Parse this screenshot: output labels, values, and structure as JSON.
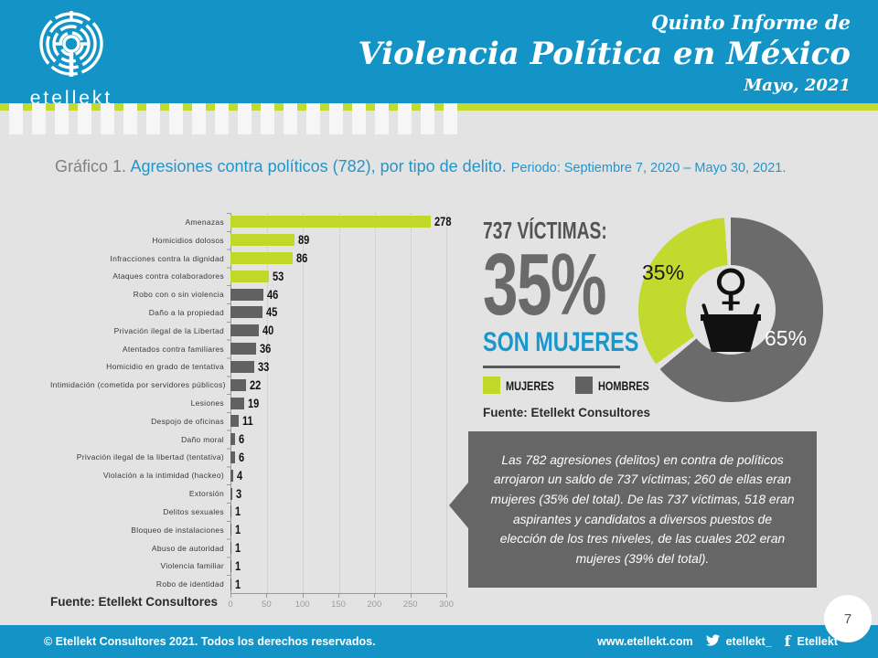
{
  "header": {
    "logo_word": "etellekt",
    "subtitle": "Quinto Informe de",
    "title": "Violencia Política en México",
    "date": "Mayo, 2021"
  },
  "graph_title": {
    "prefix": "Gráfico 1.",
    "main": " Agresiones contra políticos (782), por tipo de delito. ",
    "period": "Periodo: Septiembre 7, 2020 – Mayo 30, 2021."
  },
  "chart_data": {
    "type": "bar",
    "orientation": "horizontal",
    "title": "Agresiones contra políticos (782), por tipo de delito. Periodo: Septiembre 7, 2020 – Mayo 30, 2021.",
    "categories": [
      "Amenazas",
      "Homicidios dolosos",
      "Infracciones contra la dignidad",
      "Ataques contra colaboradores",
      "Robo con o sin violencia",
      "Daño a la propiedad",
      "Privación ilegal de la Libertad",
      "Atentados contra familiares",
      "Homicidio en grado de tentativa",
      "Intimidación (cometida por servidores públicos)",
      "Lesiones",
      "Despojo de oficinas",
      "Daño moral",
      "Privación ilegal de la libertad (tentativa)",
      "Violación a la intimidad (hackeo)",
      "Extorsión",
      "Delitos sexuales",
      "Bloqueo de instalaciones",
      "Abuso de autoridad",
      "Violencia familiar",
      "Robo de identidad"
    ],
    "values": [
      278,
      89,
      86,
      53,
      46,
      45,
      40,
      36,
      33,
      22,
      19,
      11,
      6,
      6,
      4,
      3,
      1,
      1,
      1,
      1,
      1
    ],
    "highlight_first_n": 4,
    "highlight_color": "#c2d829",
    "bar_color": "#616161",
    "xlim": [
      0,
      300
    ],
    "x_ticks": [
      0,
      50,
      100,
      150,
      200,
      250,
      300
    ],
    "grid": "dotted-vertical"
  },
  "chart_source": "Fuente:  Etellekt Consultores",
  "stats": {
    "headline": "737 VÍCTIMAS:",
    "big_percent": "35%",
    "subline": "SON MUJERES",
    "legend": [
      {
        "label": "MUJERES",
        "color": "#c2d829"
      },
      {
        "label": "HOMBRES",
        "color": "#616161"
      }
    ],
    "source": "Fuente:  Etellekt Consultores"
  },
  "donut": {
    "type": "pie",
    "slices": [
      {
        "label": "HOMBRES",
        "value": 65,
        "pct_text": "65%",
        "color": "#6b6b6b"
      },
      {
        "label": "MUJERES",
        "value": 35,
        "pct_text": "35%",
        "color": "#c2d92e"
      }
    ],
    "gap_color": "#e3e3e3",
    "center_icon": "female-speaker-podium",
    "female_symbol": "♀"
  },
  "callout": {
    "text": "Las 782 agresiones (delitos) en contra de políticos arrojaron  un saldo de 737 víctimas; 260 de ellas eran mujeres (35% del total). De las 737 víctimas, 518 eran aspirantes y candidatos a diversos puestos de elección de los tres niveles, de las cuales 202 eran mujeres (39% del total)."
  },
  "footer": {
    "copyright": "© Etellekt Consultores 2021.  Todos los derechos reservados.",
    "website": "www.etellekt.com",
    "twitter_handle": "etellekt_",
    "facebook_name": "Etellekt",
    "facebook_glyph": "f",
    "page_number": "7"
  }
}
